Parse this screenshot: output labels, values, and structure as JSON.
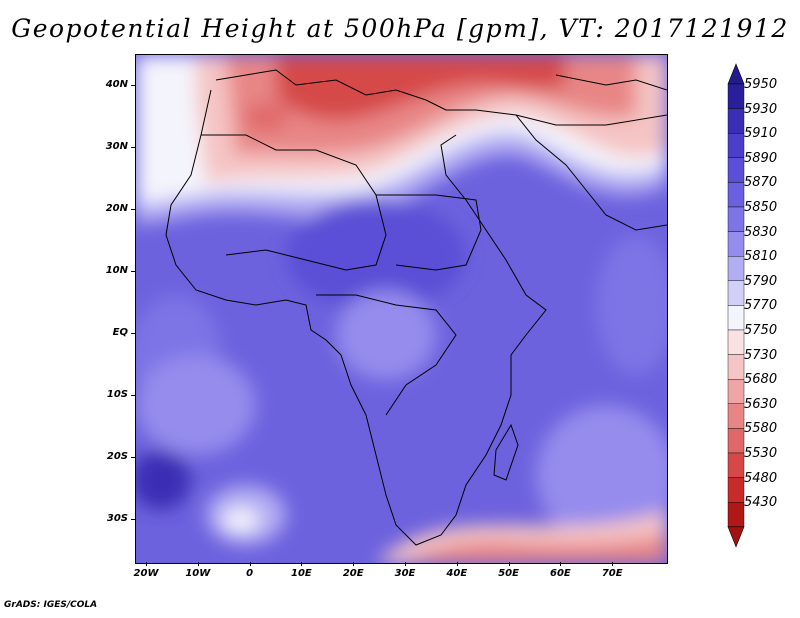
{
  "title": "Geopotential Height at 500hPa [gpm], VT: 2017121912",
  "credit": "GrADS: IGES/COLA",
  "lat_labels": [
    "40N",
    "30N",
    "20N",
    "10N",
    "EQ",
    "10S",
    "20S",
    "30S"
  ],
  "lon_labels": [
    "20W",
    "10W",
    "0",
    "10E",
    "20E",
    "30E",
    "40E",
    "50E",
    "60E",
    "70E"
  ],
  "colorbar": {
    "levels": [
      "5950",
      "5930",
      "5910",
      "5890",
      "5870",
      "5850",
      "5830",
      "5810",
      "5790",
      "5770",
      "5750",
      "5730",
      "5680",
      "5630",
      "5580",
      "5530",
      "5480",
      "5430"
    ],
    "colors": [
      "#2a1f9a",
      "#3a2fb4",
      "#4b3fc9",
      "#5a4fd6",
      "#6b60e0",
      "#7d74e6",
      "#958ced",
      "#b3adf3",
      "#d2cff8",
      "#f4f4fc",
      "#fbe2e2",
      "#f5c4c4",
      "#efa5a5",
      "#e88686",
      "#e06868",
      "#d64848",
      "#c92b2b",
      "#b01818"
    ],
    "top_arrow_color": "#241a8c",
    "bottom_arrow_color": "#a31212"
  }
}
